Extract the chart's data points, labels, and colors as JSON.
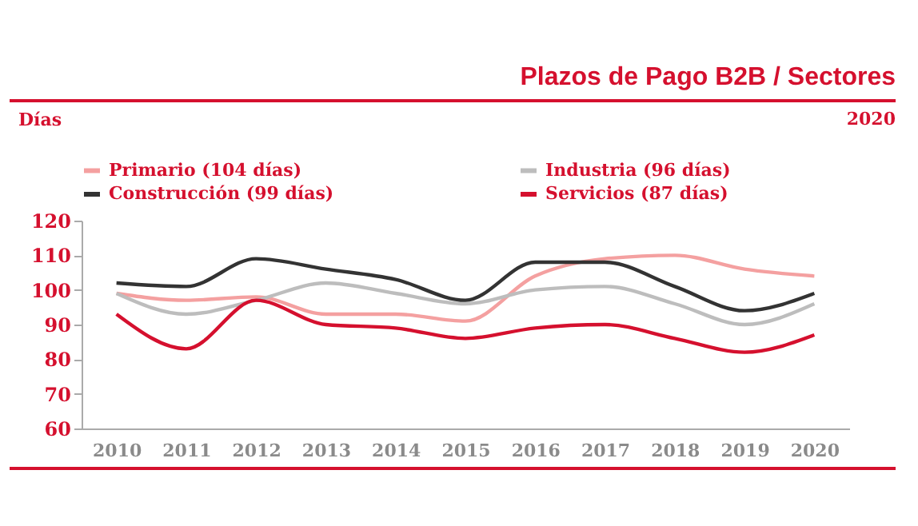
{
  "chart_data": {
    "type": "line",
    "title": "Plazos de Pago B2B / Sectores",
    "ylabel": "Días",
    "annotations": [
      "2020"
    ],
    "categories": [
      "2010",
      "2011",
      "2012",
      "2013",
      "2014",
      "2015",
      "2016",
      "2017",
      "2018",
      "2019",
      "2020"
    ],
    "series": [
      {
        "name": "Primario (104 días)",
        "color": "#f4a0a0",
        "values": [
          99,
          97,
          98,
          93,
          93,
          91,
          104,
          109,
          110,
          106,
          104
        ]
      },
      {
        "name": "Industria (96 días)",
        "color": "#bdbdbd",
        "values": [
          99,
          93,
          97,
          102,
          99,
          96,
          100,
          101,
          96,
          90,
          96
        ]
      },
      {
        "name": "Construcción (99 días)",
        "color": "#333333",
        "values": [
          102,
          101,
          109,
          106,
          103,
          97,
          108,
          108,
          101,
          94,
          99
        ]
      },
      {
        "name": "Servicios (87 días)",
        "color": "#d5102e",
        "values": [
          93,
          83,
          97,
          90,
          89,
          86,
          89,
          90,
          86,
          82,
          87
        ]
      }
    ],
    "ylim": [
      60,
      120
    ],
    "yticks": [
      60,
      70,
      80,
      90,
      100,
      110,
      120
    ],
    "grid": false,
    "legend": "top",
    "marker": "none",
    "line_style": "solid"
  }
}
